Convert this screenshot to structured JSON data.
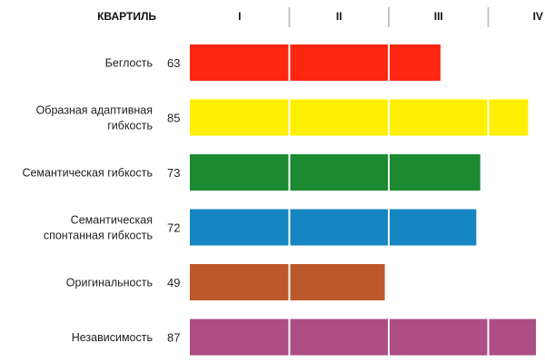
{
  "chart_data": {
    "type": "bar",
    "orientation": "horizontal",
    "header_label": "КВАРТИЛЬ",
    "quartile_labels": [
      "I",
      "II",
      "III",
      "IV"
    ],
    "categories": [
      "Беглость",
      "Образная адаптивная гибкость",
      "Семантическая гибкость",
      "Семантическая спонтанная гибкость",
      "Оригинальность",
      "Независимость"
    ],
    "values": [
      63,
      85,
      73,
      72,
      49,
      87
    ],
    "xlim": [
      0,
      100
    ],
    "quartile_dividers": [
      25,
      50,
      75
    ],
    "bar_colors": [
      "#fe2712",
      "#ffef00",
      "#1b8a30",
      "#1586c1",
      "#bd582b",
      "#ad4e86"
    ],
    "grid": false,
    "legend": "none"
  }
}
